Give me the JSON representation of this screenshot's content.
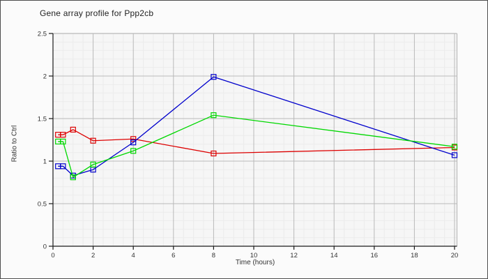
{
  "chart_data": {
    "type": "line",
    "title": "Gene array profile for Ppp2cb",
    "xlabel": "Time (hours)",
    "ylabel": "Ratio to Ctrl",
    "xlim": [
      0,
      20
    ],
    "ylim": [
      0,
      2.5
    ],
    "x_major_ticks": [
      0,
      2,
      4,
      6,
      8,
      10,
      12,
      14,
      16,
      18,
      20
    ],
    "y_major_ticks": [
      0,
      0.5,
      1,
      1.5,
      2,
      2.5
    ],
    "x_minor_step": 0.5,
    "y_minor_step": 0.1,
    "grid": true,
    "legend_position": "none",
    "marker": "open-square",
    "x": [
      0.25,
      0.5,
      1,
      2,
      4,
      8,
      20
    ],
    "series": [
      {
        "name": "red",
        "color": "#dd0000",
        "values": [
          1.31,
          1.31,
          1.37,
          1.24,
          1.26,
          1.09,
          1.16
        ]
      },
      {
        "name": "blue",
        "color": "#0000cc",
        "values": [
          0.94,
          0.94,
          0.83,
          0.9,
          1.22,
          1.99,
          1.07
        ]
      },
      {
        "name": "green",
        "color": "#00d800",
        "values": [
          1.23,
          1.23,
          0.81,
          0.96,
          1.12,
          1.54,
          1.17
        ]
      }
    ],
    "colors": {
      "plot_bg": "#f6f6f6",
      "grid_minor": "#ececec",
      "grid_major": "#b9b9b9",
      "axis": "#1a1a1a",
      "tick_text": "#333333"
    }
  }
}
